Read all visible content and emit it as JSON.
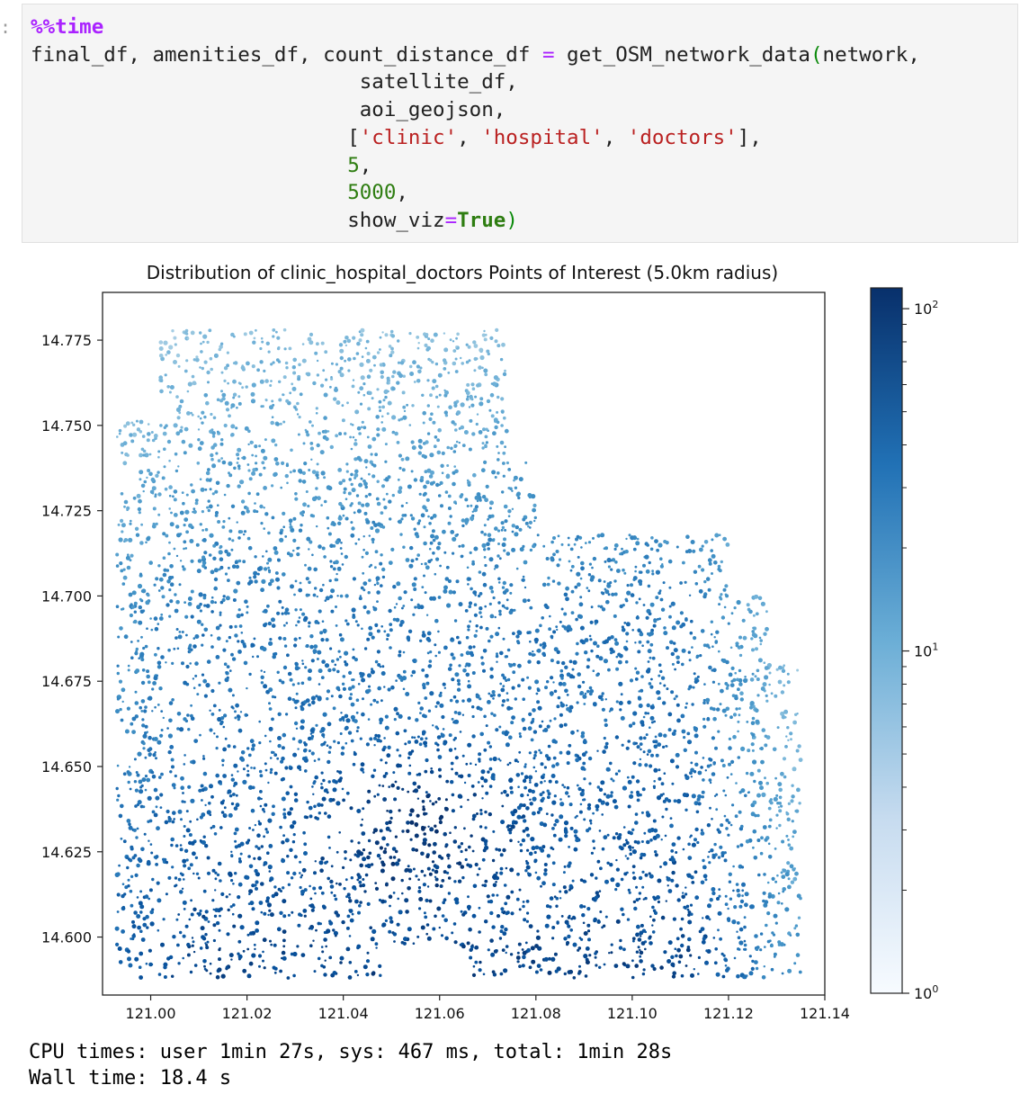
{
  "cell": {
    "prompt": ":",
    "magic": "%%time",
    "code_lines": [
      [
        {
          "t": "final_df, amenities_df, count_distance_df ",
          "c": ""
        },
        {
          "t": "=",
          "c": "op"
        },
        {
          "t": " get_OSM_network_data",
          "c": ""
        },
        {
          "t": "(",
          "c": "paren"
        },
        {
          "t": "network,",
          "c": ""
        }
      ],
      [
        {
          "t": "                           satellite_df,",
          "c": ""
        }
      ],
      [
        {
          "t": "                           aoi_geojson,",
          "c": ""
        }
      ],
      [
        {
          "t": "                          [",
          "c": ""
        },
        {
          "t": "'clinic'",
          "c": "str"
        },
        {
          "t": ", ",
          "c": ""
        },
        {
          "t": "'hospital'",
          "c": "str"
        },
        {
          "t": ", ",
          "c": ""
        },
        {
          "t": "'doctors'",
          "c": "str"
        },
        {
          "t": "],",
          "c": ""
        }
      ],
      [
        {
          "t": "                          ",
          "c": ""
        },
        {
          "t": "5",
          "c": "num"
        },
        {
          "t": ",",
          "c": ""
        }
      ],
      [
        {
          "t": "                          ",
          "c": ""
        },
        {
          "t": "5000",
          "c": "num"
        },
        {
          "t": ",",
          "c": ""
        }
      ],
      [
        {
          "t": "                          show_viz",
          "c": ""
        },
        {
          "t": "=",
          "c": "op"
        },
        {
          "t": "True",
          "c": "kw"
        },
        {
          "t": ")",
          "c": "paren"
        }
      ]
    ]
  },
  "chart_data": {
    "type": "scatter",
    "title": "Distribution of clinic_hospital_doctors Points of Interest (5.0km radius)",
    "xlabel": "",
    "ylabel": "",
    "xlim": [
      120.99,
      121.14
    ],
    "ylim": [
      14.583,
      14.789
    ],
    "xticks": [
      121.0,
      121.02,
      121.04,
      121.06,
      121.08,
      121.1,
      121.12,
      121.14
    ],
    "xtick_labels": [
      "121.00",
      "121.02",
      "121.04",
      "121.06",
      "121.08",
      "121.10",
      "121.12",
      "121.14"
    ],
    "yticks": [
      14.775,
      14.75,
      14.725,
      14.7,
      14.675,
      14.65,
      14.625,
      14.6
    ],
    "ytick_labels": [
      "14.775",
      "14.750",
      "14.725",
      "14.700",
      "14.675",
      "14.650",
      "14.625",
      "14.600"
    ],
    "grid": false,
    "colormap": "Blues",
    "color_scale": "log",
    "colorbar": {
      "ticks": [
        1,
        10,
        100
      ],
      "tick_labels": [
        "10",
        "10",
        "10"
      ],
      "tick_exponents": [
        "0",
        "1",
        "2"
      ],
      "range": [
        1,
        115
      ]
    },
    "points_note_values": "dense point cloud of road-network nodes colored by POI count"
  },
  "output": {
    "lines": [
      "CPU times: user 1min 27s, sys: 467 ms, total: 1min 28s",
      "Wall time: 18.4 s"
    ]
  }
}
